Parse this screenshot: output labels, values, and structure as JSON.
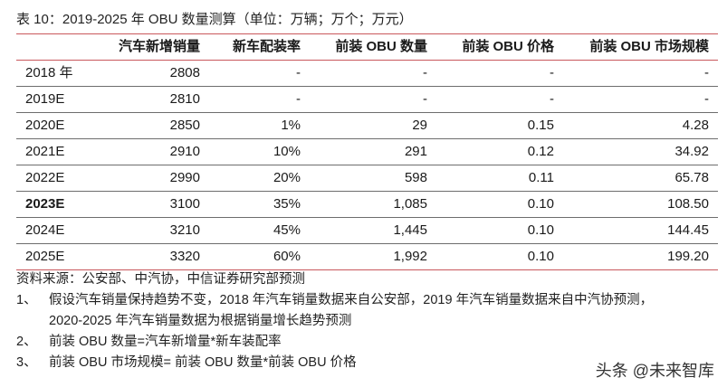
{
  "title": "表 10：2019-2025 年 OBU 数量测算（单位：万辆；万个；万元）",
  "table": {
    "headers": [
      "",
      "汽车新增销量",
      "新车配装率",
      "前装 OBU 数量",
      "前装 OBU 价格",
      "前装 OBU 市场规模"
    ],
    "rows": [
      {
        "year": "2018 年",
        "sales": "2808",
        "rate": "-",
        "obu_count": "-",
        "obu_price": "-",
        "market": "-",
        "bold": false
      },
      {
        "year": "2019E",
        "sales": "2810",
        "rate": "-",
        "obu_count": "-",
        "obu_price": "-",
        "market": "-",
        "bold": false
      },
      {
        "year": "2020E",
        "sales": "2850",
        "rate": "1%",
        "obu_count": "29",
        "obu_price": "0.15",
        "market": "4.28",
        "bold": false
      },
      {
        "year": "2021E",
        "sales": "2910",
        "rate": "10%",
        "obu_count": "291",
        "obu_price": "0.12",
        "market": "34.92",
        "bold": false
      },
      {
        "year": "2022E",
        "sales": "2990",
        "rate": "20%",
        "obu_count": "598",
        "obu_price": "0.11",
        "market": "65.78",
        "bold": false
      },
      {
        "year": "2023E",
        "sales": "3100",
        "rate": "35%",
        "obu_count": "1,085",
        "obu_price": "0.10",
        "market": "108.50",
        "bold": true
      },
      {
        "year": "2024E",
        "sales": "3210",
        "rate": "45%",
        "obu_count": "1,445",
        "obu_price": "0.10",
        "market": "144.45",
        "bold": false
      },
      {
        "year": "2025E",
        "sales": "3320",
        "rate": "60%",
        "obu_count": "1,992",
        "obu_price": "0.10",
        "market": "199.20",
        "bold": false
      }
    ]
  },
  "notes": {
    "source": "资料来源：公安部、中汽协，中信证券研究部预测",
    "items": [
      {
        "num": "1、",
        "text": "假设汽车销量保持趋势不变，2018 年汽车销量数据来自公安部，2019 年汽车销量数据来自中汽协预测，",
        "cont": "2020-2025 年汽车销量数据为根据销量增长趋势预测"
      },
      {
        "num": "2、",
        "text": "前装 OBU 数量=汽车新增量*新车装配率"
      },
      {
        "num": "3、",
        "text": "前装 OBU 市场规模= 前装 OBU 数量*前装 OBU 价格"
      }
    ]
  },
  "watermark": "头条 @未来智库",
  "colors": {
    "accent_line": "#c9585c",
    "row_line": "#6d6d6d"
  }
}
